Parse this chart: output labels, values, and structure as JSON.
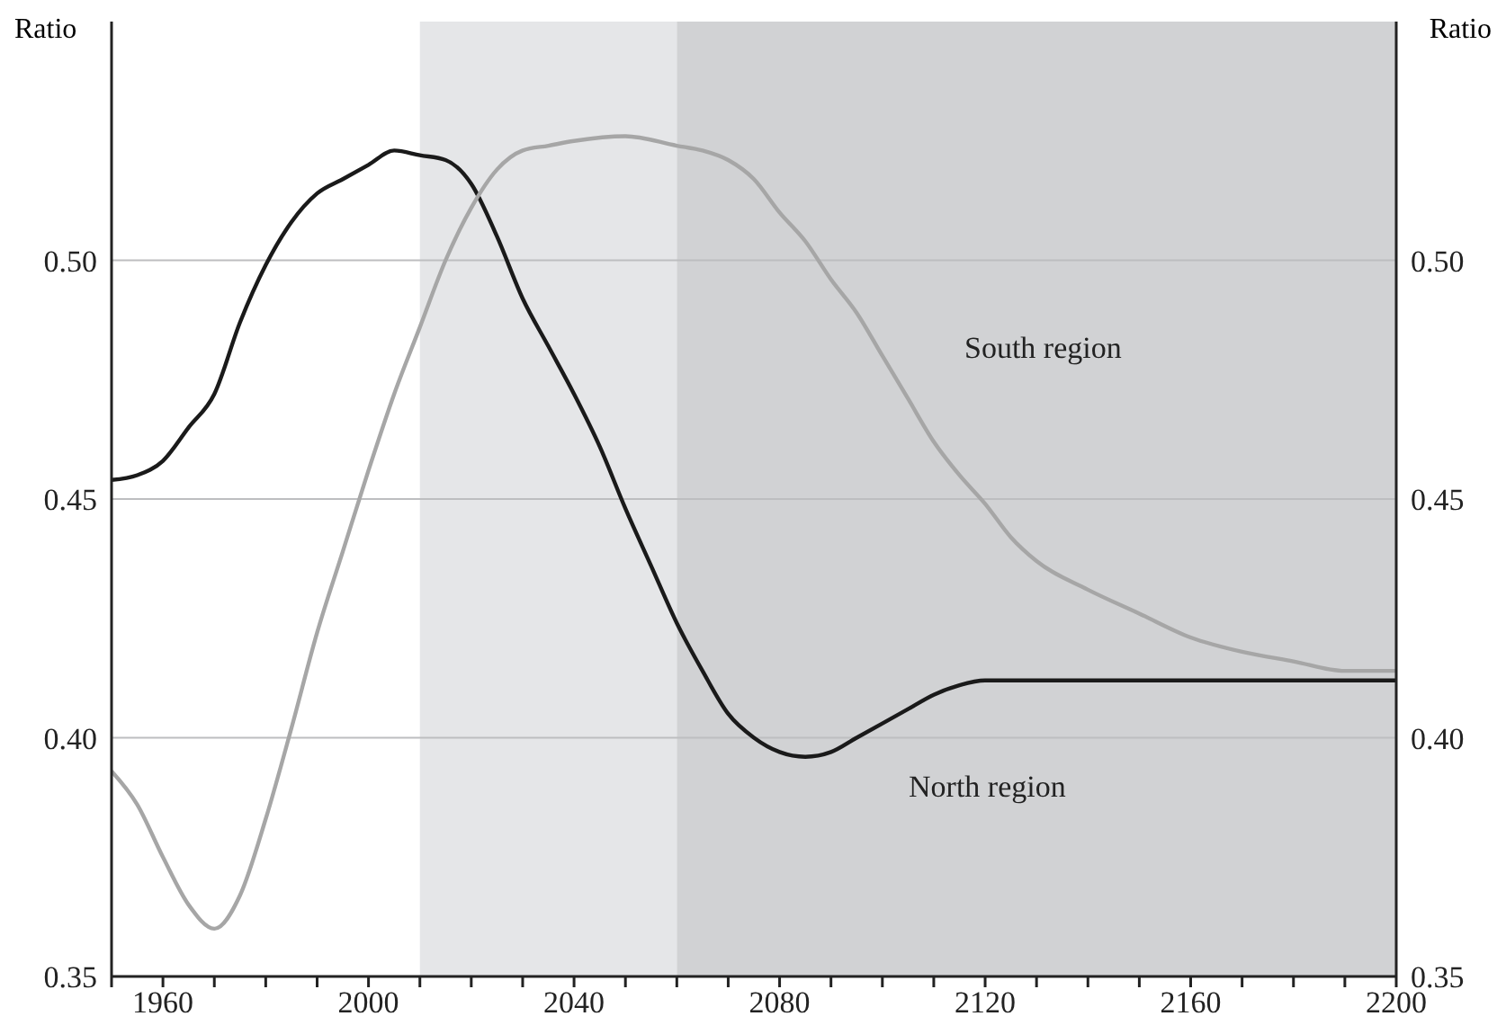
{
  "chart_data": {
    "type": "line",
    "ylabel": "Ratio",
    "y2label": "Ratio",
    "xlim": [
      1950,
      2200
    ],
    "xticks": [
      {
        "value": 1950,
        "label": null
      },
      1960,
      {
        "value": 1970,
        "label": null
      },
      {
        "value": 1980,
        "label": null
      },
      {
        "value": 1990,
        "label": null
      },
      2000,
      {
        "value": 2010,
        "label": null
      },
      {
        "value": 2020,
        "label": null
      },
      {
        "value": 2030,
        "label": null
      },
      2040,
      {
        "value": 2050,
        "label": null
      },
      {
        "value": 2060,
        "label": null
      },
      {
        "value": 2070,
        "label": null
      },
      2080,
      {
        "value": 2090,
        "label": null
      },
      {
        "value": 2100,
        "label": null
      },
      {
        "value": 2110,
        "label": null
      },
      2120,
      {
        "value": 2130,
        "label": null
      },
      {
        "value": 2140,
        "label": null
      },
      {
        "value": 2150,
        "label": null
      },
      2160,
      {
        "value": 2170,
        "label": null
      },
      {
        "value": 2180,
        "label": null
      },
      {
        "value": 2190,
        "label": null
      },
      2200
    ],
    "ylim": [
      0.35,
      0.55
    ],
    "yticks": [
      {
        "value": 0.35,
        "label": "0.35"
      },
      {
        "value": 0.4,
        "label": "0.40"
      },
      {
        "value": 0.45,
        "label": "0.45"
      },
      {
        "value": 0.5,
        "label": "0.50"
      }
    ],
    "y2lim": [
      0.35,
      0.55
    ],
    "y2ticks": [
      {
        "value": 0.35,
        "label": "0.35"
      },
      {
        "value": 0.4,
        "label": "0.40"
      },
      {
        "value": 0.45,
        "label": "0.45"
      },
      {
        "value": 0.5,
        "label": "0.50"
      }
    ],
    "grid": "y",
    "legend": false,
    "marker": "none",
    "line_style": "solid",
    "bands": [
      {
        "axis": "x",
        "from": 2010,
        "to": 2060,
        "color": "#e5e6e8"
      },
      {
        "axis": "x",
        "from": 2060,
        "to": 2200,
        "color": "#d1d2d4"
      }
    ],
    "series": [
      {
        "name": "North region",
        "color": "#1a1a1a",
        "x": [
          1950,
          1955,
          1960,
          1965,
          1970,
          1975,
          1980,
          1985,
          1990,
          1995,
          2000,
          2005,
          2010,
          2015,
          2020,
          2025,
          2030,
          2035,
          2040,
          2045,
          2050,
          2055,
          2060,
          2065,
          2070,
          2075,
          2080,
          2085,
          2090,
          2095,
          2100,
          2105,
          2110,
          2115,
          2120,
          2130,
          2200
        ],
        "values": [
          0.454,
          0.455,
          0.458,
          0.465,
          0.472,
          0.487,
          0.499,
          0.508,
          0.514,
          0.517,
          0.52,
          0.523,
          0.522,
          0.521,
          0.516,
          0.505,
          0.492,
          0.482,
          0.472,
          0.461,
          0.448,
          0.436,
          0.424,
          0.414,
          0.405,
          0.4,
          0.397,
          0.396,
          0.397,
          0.4,
          0.403,
          0.406,
          0.409,
          0.411,
          0.412,
          0.412,
          0.412
        ]
      },
      {
        "name": "South region",
        "color": "#a6a6a6",
        "x": [
          1950,
          1955,
          1960,
          1965,
          1970,
          1975,
          1980,
          1985,
          1990,
          1995,
          2000,
          2005,
          2010,
          2015,
          2020,
          2025,
          2030,
          2035,
          2040,
          2050,
          2060,
          2065,
          2070,
          2075,
          2080,
          2085,
          2090,
          2095,
          2100,
          2105,
          2110,
          2115,
          2120,
          2125,
          2130,
          2140,
          2150,
          2160,
          2170,
          2180,
          2190,
          2200
        ],
        "values": [
          0.393,
          0.386,
          0.375,
          0.365,
          0.36,
          0.367,
          0.383,
          0.402,
          0.422,
          0.439,
          0.456,
          0.472,
          0.486,
          0.5,
          0.511,
          0.519,
          0.523,
          0.524,
          0.525,
          0.526,
          0.524,
          0.523,
          0.521,
          0.517,
          0.51,
          0.504,
          0.496,
          0.489,
          0.48,
          0.471,
          0.462,
          0.455,
          0.449,
          0.442,
          0.437,
          0.431,
          0.426,
          0.421,
          0.418,
          0.416,
          0.414,
          0.414
        ]
      }
    ]
  }
}
